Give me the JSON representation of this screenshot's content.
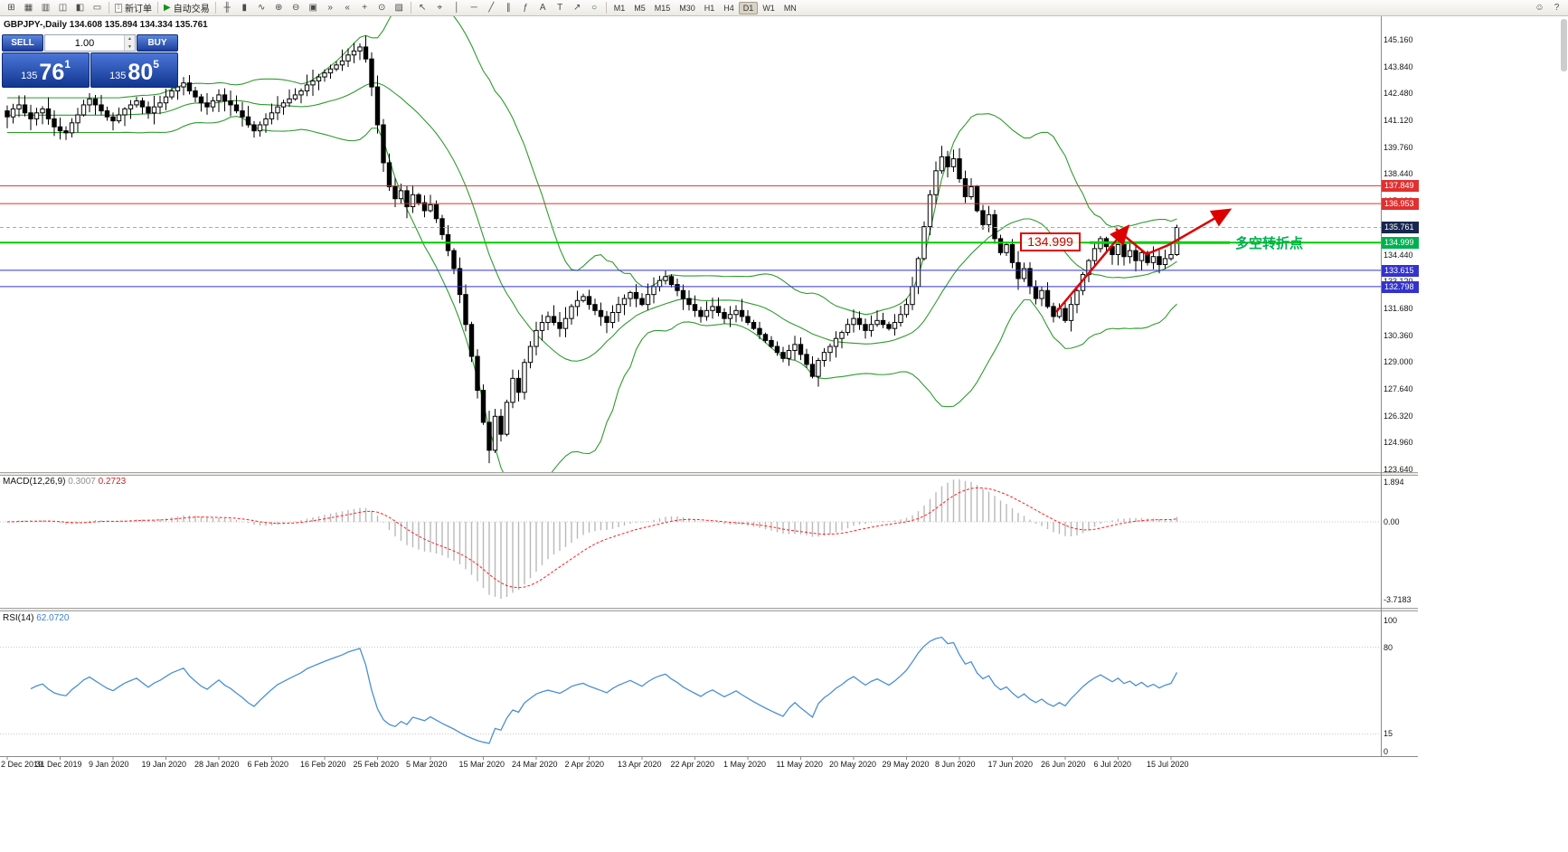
{
  "toolbar": {
    "system_icons": [
      {
        "name": "new-chart-icon",
        "glyph": "⊞"
      },
      {
        "name": "profiles-icon",
        "glyph": "▦"
      },
      {
        "name": "market-watch-icon",
        "glyph": "▥"
      },
      {
        "name": "data-window-icon",
        "glyph": "◫"
      },
      {
        "name": "navigator-icon",
        "glyph": "◧"
      },
      {
        "name": "terminal-icon",
        "glyph": "▭"
      }
    ],
    "new_order_label": "新订单",
    "new_order_glyph": "▯",
    "autotrade_label": "自动交易",
    "autotrade_glyph": "▶",
    "chart_icons": [
      {
        "name": "bar-chart-icon",
        "glyph": "╫"
      },
      {
        "name": "candlestick-chart-icon",
        "glyph": "▮"
      },
      {
        "name": "line-chart-icon",
        "glyph": "∿"
      },
      {
        "name": "zoom-in-icon",
        "glyph": "⊕"
      },
      {
        "name": "zoom-out-icon",
        "glyph": "⊖"
      },
      {
        "name": "tile-windows-icon",
        "glyph": "▣"
      },
      {
        "name": "auto-scroll-icon",
        "glyph": "»"
      },
      {
        "name": "chart-shift-icon",
        "glyph": "«"
      },
      {
        "name": "indicators-icon",
        "glyph": "+"
      },
      {
        "name": "periods-icon",
        "glyph": "⊙"
      },
      {
        "name": "templates-icon",
        "glyph": "▨"
      }
    ],
    "tool_icons": [
      {
        "name": "cursor-icon",
        "glyph": "↖"
      },
      {
        "name": "crosshair-icon",
        "glyph": "⌖"
      },
      {
        "name": "vertical-line-icon",
        "glyph": "│"
      },
      {
        "name": "horizontal-line-icon",
        "glyph": "─"
      },
      {
        "name": "trendline-icon",
        "glyph": "╱"
      },
      {
        "name": "channel-icon",
        "glyph": "∥"
      },
      {
        "name": "fibonacci-icon",
        "glyph": "ƒ"
      },
      {
        "name": "text-icon",
        "glyph": "A"
      },
      {
        "name": "label-icon",
        "glyph": "T"
      },
      {
        "name": "arrow-tool-icon",
        "glyph": "↗"
      },
      {
        "name": "shapes-icon",
        "glyph": "○"
      }
    ],
    "timeframes": [
      "M1",
      "M5",
      "M15",
      "M30",
      "H1",
      "H4",
      "D1",
      "W1",
      "MN"
    ],
    "active_timeframe": "D1",
    "right_icons": [
      {
        "name": "community-icon",
        "glyph": "☺"
      },
      {
        "name": "help-icon",
        "glyph": "?"
      }
    ]
  },
  "trade_panel": {
    "sell_label": "SELL",
    "buy_label": "BUY",
    "lot_value": "1.00",
    "sell_price_small": "135",
    "sell_price_big": "76",
    "sell_price_sup": "1",
    "buy_price_small": "135",
    "buy_price_big": "80",
    "buy_price_sup": "5"
  },
  "chart": {
    "title": "GBPJPY-,Daily 134.608 135.894 134.334 135.761",
    "symbol": "GBPJPY-",
    "period": "Daily",
    "ohlc": {
      "open": "134.608",
      "high": "135.894",
      "low": "134.334",
      "close": "135.761"
    }
  },
  "axis": {
    "price_ticks": [
      "145.160",
      "143.840",
      "142.480",
      "141.120",
      "139.760",
      "138.440",
      "137.120",
      "135.800",
      "134.440",
      "133.120",
      "131.680",
      "130.360",
      "129.000",
      "127.640",
      "126.320",
      "124.960",
      "123.640"
    ],
    "price_levels": [
      {
        "text": "137.849",
        "value": 137.849,
        "bg": "#e03030",
        "line": "#e03030"
      },
      {
        "text": "136.953",
        "value": 136.953,
        "bg": "#e03030",
        "line": "#e03030"
      },
      {
        "text": "135.761",
        "value": 135.761,
        "bg": "#17264f",
        "line": "#aaaaaa",
        "dashed": true,
        "current": true
      },
      {
        "text": "134.999",
        "value": 134.999,
        "bg": "#00b050",
        "line": "#00cc00",
        "thick": true
      },
      {
        "text": "133.615",
        "value": 133.615,
        "bg": "#3333cc",
        "line": "#3333cc"
      },
      {
        "text": "132.798",
        "value": 132.798,
        "bg": "#3333cc",
        "line": "#3333cc"
      }
    ],
    "dates": [
      "2 Dec 2019",
      "31 Dec 2019",
      "9 Jan 2020",
      "19 Jan 2020",
      "28 Jan 2020",
      "6 Feb 2020",
      "16 Feb 2020",
      "25 Feb 2020",
      "5 Mar 2020",
      "15 Mar 2020",
      "24 Mar 2020",
      "2 Apr 2020",
      "13 Apr 2020",
      "22 Apr 2020",
      "1 May 2020",
      "11 May 2020",
      "20 May 2020",
      "29 May 2020",
      "8 Jun 2020",
      "17 Jun 2020",
      "26 Jun 2020",
      "6 Jul 2020",
      "15 Jul 2020"
    ]
  },
  "macd": {
    "label": "MACD(12,26,9)",
    "main_value": "0.3007",
    "signal_value": "0.2723",
    "axis_ticks": [
      "1.894",
      "0.00",
      "-3.7183"
    ]
  },
  "rsi": {
    "label": "RSI(14)",
    "value": "62.0720",
    "axis_ticks": [
      "100",
      "80",
      "15",
      "0"
    ],
    "levels": [
      80,
      15
    ]
  },
  "annotations": {
    "callout_text": "134.999",
    "note_text": "多空转折点",
    "note_color": "#00b050",
    "arrow_color": "#dd0000"
  },
  "chart_data": {
    "type": "candlestick",
    "symbol": "GBPJPY",
    "timeframe": "Daily",
    "title": "GBPJPY-,Daily",
    "ylim": [
      123.64,
      145.16
    ],
    "x_labels": [
      "2 Dec 2019",
      "31 Dec 2019",
      "9 Jan 2020",
      "19 Jan 2020",
      "28 Jan 2020",
      "6 Feb 2020",
      "16 Feb 2020",
      "25 Feb 2020",
      "5 Mar 2020",
      "15 Mar 2020",
      "24 Mar 2020",
      "2 Apr 2020",
      "13 Apr 2020",
      "22 Apr 2020",
      "1 May 2020",
      "11 May 2020",
      "20 May 2020",
      "29 May 2020",
      "8 Jun 2020",
      "17 Jun 2020",
      "26 Jun 2020",
      "6 Jul 2020",
      "15 Jul 2020"
    ],
    "levels": [
      137.849,
      136.953,
      135.761,
      134.999,
      133.615,
      132.798
    ],
    "indicators": [
      {
        "type": "bollinger",
        "period": 20,
        "deviation": 2
      },
      {
        "type": "macd",
        "fast": 12,
        "slow": 26,
        "signal": 9,
        "last_main": 0.3007,
        "last_signal": 0.2723
      },
      {
        "type": "rsi",
        "period": 14,
        "last_value": 62.072
      }
    ],
    "closes": [
      141.3,
      141.7,
      141.9,
      141.5,
      141.2,
      141.5,
      141.7,
      141.2,
      140.8,
      140.6,
      140.5,
      141.0,
      141.4,
      141.9,
      142.2,
      141.9,
      141.6,
      141.3,
      141.1,
      141.4,
      141.7,
      141.9,
      142.1,
      141.8,
      141.5,
      141.8,
      142.0,
      142.3,
      142.6,
      142.8,
      143.0,
      142.6,
      142.3,
      142.0,
      141.8,
      142.1,
      142.4,
      142.1,
      141.9,
      141.6,
      141.3,
      140.9,
      140.6,
      140.9,
      141.2,
      141.5,
      141.8,
      142.0,
      142.2,
      142.4,
      142.6,
      142.9,
      143.1,
      143.3,
      143.5,
      143.7,
      143.9,
      144.1,
      144.4,
      144.6,
      144.8,
      144.2,
      142.8,
      140.9,
      139.0,
      137.8,
      137.2,
      137.6,
      136.8,
      137.4,
      137.0,
      136.6,
      136.9,
      136.2,
      135.4,
      134.6,
      133.7,
      132.4,
      130.9,
      129.3,
      127.6,
      126.0,
      124.6,
      126.3,
      125.4,
      127.0,
      128.2,
      127.5,
      129.0,
      129.8,
      130.6,
      131.0,
      131.3,
      131.0,
      130.7,
      131.2,
      131.8,
      132.1,
      132.3,
      131.9,
      131.6,
      131.3,
      131.0,
      131.5,
      131.9,
      132.2,
      132.5,
      132.2,
      131.9,
      132.4,
      132.8,
      133.1,
      133.3,
      132.9,
      132.6,
      132.2,
      131.9,
      131.6,
      131.3,
      131.6,
      131.8,
      131.5,
      131.2,
      131.4,
      131.6,
      131.3,
      131.0,
      130.7,
      130.4,
      130.1,
      129.8,
      129.5,
      129.2,
      129.6,
      129.9,
      129.4,
      128.9,
      128.3,
      129.1,
      129.5,
      129.8,
      130.2,
      130.5,
      130.9,
      131.2,
      130.9,
      130.6,
      130.9,
      131.1,
      130.9,
      130.7,
      131.0,
      131.4,
      131.9,
      132.8,
      134.2,
      135.8,
      137.4,
      138.6,
      139.3,
      138.8,
      139.2,
      138.2,
      137.3,
      137.8,
      136.6,
      135.9,
      136.4,
      135.2,
      134.5,
      134.9,
      134.0,
      133.2,
      133.7,
      132.8,
      132.2,
      132.6,
      131.8,
      131.3,
      131.7,
      131.1,
      131.9,
      132.6,
      133.4,
      134.1,
      134.7,
      135.2,
      134.8,
      134.4,
      134.9,
      134.3,
      134.6,
      134.1,
      134.5,
      134.0,
      134.3,
      133.9,
      134.2,
      134.4,
      135.76
    ]
  }
}
